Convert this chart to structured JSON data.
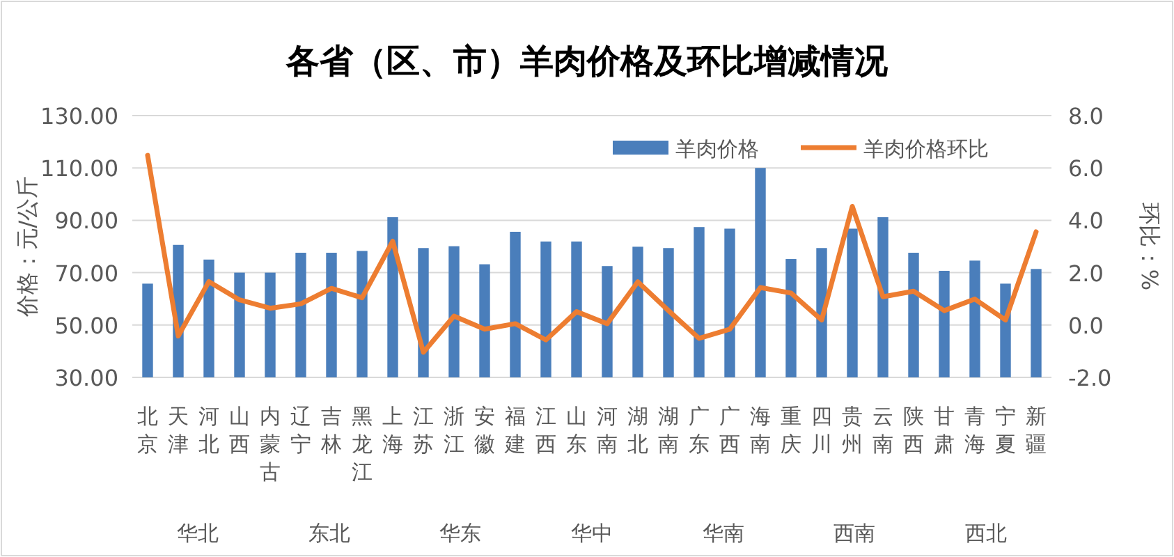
{
  "chart_data": {
    "type": "bar",
    "title": "各省（区、市）羊肉价格及环比增减情况",
    "ylabel": "价格：元/公斤",
    "y2label": "环比：%",
    "categories": [
      "北京",
      "天津",
      "河北",
      "山西",
      "内蒙古",
      "辽宁",
      "吉林",
      "黑龙江",
      "上海",
      "江苏",
      "浙江",
      "安徽",
      "福建",
      "江西",
      "山东",
      "河南",
      "湖北",
      "湖南",
      "广东",
      "广西",
      "海南",
      "重庆",
      "四川",
      "贵州",
      "云南",
      "陕西",
      "甘肃",
      "青海",
      "宁夏",
      "新疆"
    ],
    "series": [
      {
        "name": "羊肉价格",
        "color": "#4a7ebb",
        "values": [
          65.8,
          80.6,
          75.0,
          70.0,
          70.0,
          77.6,
          77.6,
          78.3,
          91.2,
          79.4,
          80.1,
          73.2,
          85.6,
          81.9,
          81.9,
          72.5,
          79.9,
          79.4,
          87.4,
          86.8,
          110.0,
          75.2,
          79.4,
          86.8,
          91.2,
          77.6,
          70.7,
          74.6,
          65.8,
          71.4
        ]
      },
      {
        "name": "羊肉价格环比",
        "type": "line",
        "axis": "y2",
        "color": "#ed7d31",
        "values": [
          6.48,
          -0.42,
          1.66,
          0.96,
          0.64,
          0.81,
          1.4,
          1.04,
          3.2,
          -1.04,
          0.34,
          -0.16,
          0.05,
          -0.57,
          0.51,
          0.05,
          1.65,
          0.55,
          -0.51,
          -0.16,
          1.43,
          1.22,
          0.19,
          4.53,
          1.08,
          1.29,
          0.55,
          0.99,
          0.19,
          3.56
        ]
      }
    ],
    "ylim": [
      30,
      130
    ],
    "yticks": [
      {
        "value": 30,
        "label": "30.00"
      },
      {
        "value": 50,
        "label": "50.00"
      },
      {
        "value": 70,
        "label": "70.00"
      },
      {
        "value": 90,
        "label": "90.00"
      },
      {
        "value": 110,
        "label": "110.00"
      },
      {
        "value": 130,
        "label": "130.00"
      }
    ],
    "y2lim": [
      -2,
      8
    ],
    "y2ticks": [
      {
        "value": -2,
        "label": "-2.0"
      },
      {
        "value": 0,
        "label": "0.0"
      },
      {
        "value": 2,
        "label": "2.0"
      },
      {
        "value": 4,
        "label": "4.0"
      },
      {
        "value": 6,
        "label": "6.0"
      },
      {
        "value": 8,
        "label": "8.0"
      }
    ],
    "annotations": [
      "华北",
      "东北",
      "华东",
      "华中",
      "华南",
      "西南",
      "西北"
    ],
    "grid": "y",
    "legend": "top right",
    "marker": "none",
    "line_style": "solid"
  }
}
